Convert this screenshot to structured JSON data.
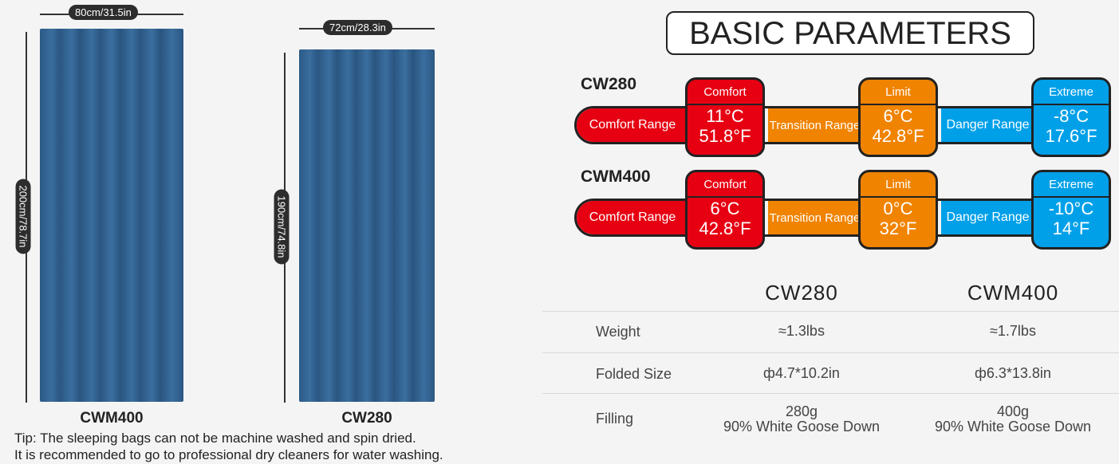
{
  "bags": [
    {
      "name": "CWM400",
      "width": "80cm/31.5in",
      "length": "200cm/78.7in"
    },
    {
      "name": "CW280",
      "width": "72cm/28.3in",
      "length": "190cm/74.8in"
    }
  ],
  "tip": [
    "Tip: The sleeping bags can not be machine washed and spin dried.",
    "It is recommended to go to professional dry cleaners for water washing."
  ],
  "title": "BASIC PARAMETERS",
  "temps": [
    {
      "model": "CW280",
      "comfort": [
        "11°C",
        "51.8°F"
      ],
      "limit": [
        "6°C",
        "42.8°F"
      ],
      "extreme": [
        "-8°C",
        "17.6°F"
      ]
    },
    {
      "model": "CWM400",
      "comfort": [
        "6°C",
        "42.8°F"
      ],
      "limit": [
        "0°C",
        "32°F"
      ],
      "extreme": [
        "-10°C",
        "14°F"
      ]
    }
  ],
  "labels": {
    "comfort": "Comfort",
    "limit": "Limit",
    "extreme": "Extreme",
    "comfort_range": "Comfort Range",
    "transition_range": "Transition Range",
    "danger_range": "Danger Range"
  },
  "colors": {
    "comfort": "#e60012",
    "limit": "#f08300",
    "extreme": "#00a0e9"
  },
  "table": {
    "headers": [
      "CW280",
      "CWM400"
    ],
    "rows": [
      {
        "label": "Weight",
        "values": [
          [
            "≈1.3lbs"
          ],
          [
            "≈1.7lbs"
          ]
        ]
      },
      {
        "label": "Folded Size",
        "values": [
          [
            "ф4.7*10.2in"
          ],
          [
            "ф6.3*13.8in"
          ]
        ]
      },
      {
        "label": "Filling",
        "values": [
          [
            "280g",
            "90% White Goose Down"
          ],
          [
            "400g",
            "90% White Goose Down"
          ]
        ]
      }
    ]
  }
}
